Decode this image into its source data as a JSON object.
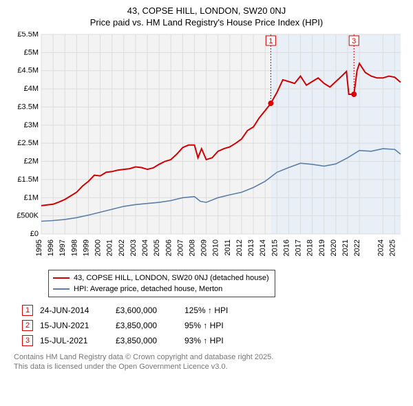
{
  "title": "43, COPSE HILL, LONDON, SW20 0NJ",
  "subtitle": "Price paid vs. HM Land Registry's House Price Index (HPI)",
  "chart": {
    "type": "line",
    "plot_bg": "#f3f3f3",
    "plot_bg_recent": "#e8eff6",
    "recent_split_year": 2014.48,
    "grid_color": "#dcdcdc",
    "xlim": [
      1995,
      2025.5
    ],
    "ylim": [
      0,
      5500000
    ],
    "ytick_step": 500000,
    "ytick_labels": [
      "£0",
      "£500K",
      "£1M",
      "£1.5M",
      "£2M",
      "£2.5M",
      "£3M",
      "£3.5M",
      "£4M",
      "£4.5M",
      "£5M",
      "£5.5M"
    ],
    "xticks": [
      1995,
      1996,
      1997,
      1998,
      1999,
      2000,
      2001,
      2002,
      2003,
      2004,
      2005,
      2006,
      2007,
      2008,
      2009,
      2010,
      2011,
      2012,
      2013,
      2014,
      2015,
      2016,
      2017,
      2018,
      2019,
      2020,
      2021,
      2022,
      2024,
      2025
    ],
    "series": [
      {
        "name": "43, COPSE HILL, LONDON, SW20 0NJ (detached house)",
        "color": "#d00000",
        "width": 2,
        "points": [
          [
            1995.0,
            780000
          ],
          [
            1995.5,
            800000
          ],
          [
            1996.0,
            820000
          ],
          [
            1996.5,
            880000
          ],
          [
            1997.0,
            950000
          ],
          [
            1997.5,
            1050000
          ],
          [
            1998.0,
            1150000
          ],
          [
            1998.5,
            1320000
          ],
          [
            1999.0,
            1450000
          ],
          [
            1999.5,
            1620000
          ],
          [
            2000.0,
            1600000
          ],
          [
            2000.5,
            1700000
          ],
          [
            2001.0,
            1720000
          ],
          [
            2001.5,
            1760000
          ],
          [
            2002.0,
            1780000
          ],
          [
            2002.5,
            1800000
          ],
          [
            2003.0,
            1850000
          ],
          [
            2003.5,
            1830000
          ],
          [
            2004.0,
            1780000
          ],
          [
            2004.5,
            1820000
          ],
          [
            2005.0,
            1920000
          ],
          [
            2005.5,
            2000000
          ],
          [
            2006.0,
            2050000
          ],
          [
            2006.5,
            2200000
          ],
          [
            2007.0,
            2380000
          ],
          [
            2007.5,
            2450000
          ],
          [
            2008.0,
            2450000
          ],
          [
            2008.3,
            2100000
          ],
          [
            2008.6,
            2350000
          ],
          [
            2009.0,
            2050000
          ],
          [
            2009.5,
            2100000
          ],
          [
            2010.0,
            2280000
          ],
          [
            2010.5,
            2350000
          ],
          [
            2011.0,
            2400000
          ],
          [
            2011.5,
            2500000
          ],
          [
            2012.0,
            2620000
          ],
          [
            2012.5,
            2850000
          ],
          [
            2013.0,
            2950000
          ],
          [
            2013.5,
            3200000
          ],
          [
            2014.0,
            3400000
          ],
          [
            2014.48,
            3600000
          ],
          [
            2015.0,
            3900000
          ],
          [
            2015.5,
            4250000
          ],
          [
            2016.0,
            4200000
          ],
          [
            2016.5,
            4150000
          ],
          [
            2017.0,
            4350000
          ],
          [
            2017.5,
            4100000
          ],
          [
            2018.0,
            4200000
          ],
          [
            2018.5,
            4300000
          ],
          [
            2019.0,
            4150000
          ],
          [
            2019.5,
            4050000
          ],
          [
            2020.0,
            4200000
          ],
          [
            2020.5,
            4350000
          ],
          [
            2020.9,
            4480000
          ],
          [
            2021.1,
            3850000
          ],
          [
            2021.46,
            3850000
          ],
          [
            2021.54,
            3850000
          ],
          [
            2021.8,
            4500000
          ],
          [
            2022.0,
            4700000
          ],
          [
            2022.5,
            4450000
          ],
          [
            2023.0,
            4350000
          ],
          [
            2023.5,
            4300000
          ],
          [
            2024.0,
            4300000
          ],
          [
            2024.5,
            4350000
          ],
          [
            2025.0,
            4320000
          ],
          [
            2025.5,
            4180000
          ]
        ]
      },
      {
        "name": "HPI: Average price, detached house, Merton",
        "color": "#5b7fa6",
        "width": 1.6,
        "points": [
          [
            1995.0,
            350000
          ],
          [
            1996.0,
            370000
          ],
          [
            1997.0,
            400000
          ],
          [
            1998.0,
            450000
          ],
          [
            1999.0,
            520000
          ],
          [
            2000.0,
            600000
          ],
          [
            2001.0,
            680000
          ],
          [
            2002.0,
            760000
          ],
          [
            2003.0,
            810000
          ],
          [
            2004.0,
            840000
          ],
          [
            2005.0,
            870000
          ],
          [
            2006.0,
            920000
          ],
          [
            2007.0,
            1000000
          ],
          [
            2008.0,
            1030000
          ],
          [
            2008.5,
            900000
          ],
          [
            2009.0,
            870000
          ],
          [
            2010.0,
            1000000
          ],
          [
            2011.0,
            1080000
          ],
          [
            2012.0,
            1150000
          ],
          [
            2013.0,
            1280000
          ],
          [
            2014.0,
            1450000
          ],
          [
            2015.0,
            1700000
          ],
          [
            2016.0,
            1830000
          ],
          [
            2017.0,
            1950000
          ],
          [
            2018.0,
            1920000
          ],
          [
            2019.0,
            1870000
          ],
          [
            2020.0,
            1930000
          ],
          [
            2021.0,
            2100000
          ],
          [
            2022.0,
            2300000
          ],
          [
            2023.0,
            2280000
          ],
          [
            2024.0,
            2350000
          ],
          [
            2025.0,
            2330000
          ],
          [
            2025.5,
            2200000
          ]
        ]
      }
    ],
    "markers": [
      {
        "num": "1",
        "x": 2014.48,
        "y": 3600000,
        "label_y_top": true
      },
      {
        "num": "3",
        "x": 2021.54,
        "y": 3850000,
        "label_y_top": true
      }
    ]
  },
  "legend": {
    "rows": [
      {
        "color": "#d00000",
        "label": "43, COPSE HILL, LONDON, SW20 0NJ (detached house)"
      },
      {
        "color": "#5b7fa6",
        "label": "HPI: Average price, detached house, Merton"
      }
    ]
  },
  "events": [
    {
      "num": "1",
      "date": "24-JUN-2014",
      "price": "£3,600,000",
      "delta": "125% ↑ HPI"
    },
    {
      "num": "2",
      "date": "15-JUN-2021",
      "price": "£3,850,000",
      "delta": "95% ↑ HPI"
    },
    {
      "num": "3",
      "date": "15-JUL-2021",
      "price": "£3,850,000",
      "delta": "93% ↑ HPI"
    }
  ],
  "footer": {
    "line1": "Contains HM Land Registry data © Crown copyright and database right 2025.",
    "line2": "This data is licensed under the Open Government Licence v3.0."
  }
}
